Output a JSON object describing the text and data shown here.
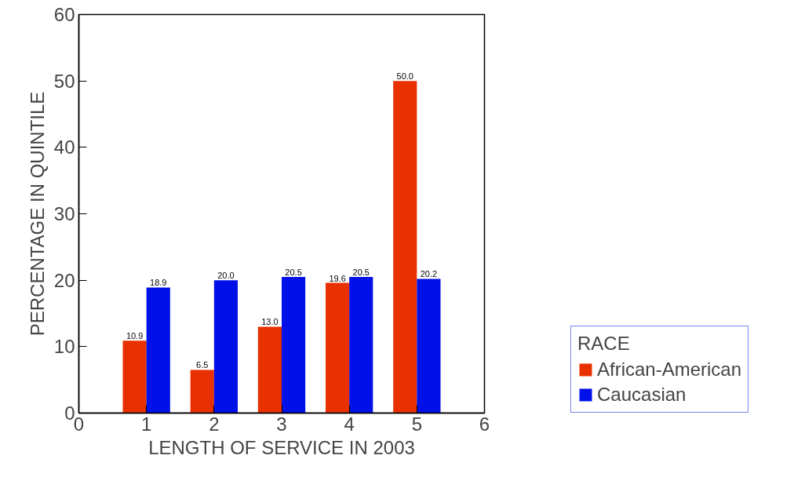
{
  "chart_data": {
    "type": "bar",
    "xlabel": "LENGTH OF SERVICE IN 2003",
    "ylabel": "PERCENTAGE IN QUINTILE",
    "legend_title": "RACE",
    "x": [
      1,
      2,
      3,
      4,
      5
    ],
    "series": [
      {
        "name": "African-American",
        "color": "#e83000",
        "values": [
          10.9,
          6.5,
          13.0,
          19.6,
          50.0
        ],
        "value_labels": [
          "10.9",
          "6.5",
          "13.0",
          "19.6",
          "50.0"
        ]
      },
      {
        "name": "Caucasian",
        "color": "#0010e8",
        "values": [
          18.9,
          20.0,
          20.5,
          20.5,
          20.2
        ],
        "value_labels": [
          "18.9",
          "20.0",
          "20.5",
          "20.5",
          "20.2"
        ]
      }
    ],
    "xlim": [
      0,
      6
    ],
    "xticks": [
      0,
      1,
      2,
      3,
      4,
      5,
      6
    ],
    "ylim": [
      0,
      60
    ],
    "yticks": [
      0,
      10,
      20,
      30,
      40,
      50,
      60
    ],
    "grid": false,
    "legend": "bottom right"
  }
}
